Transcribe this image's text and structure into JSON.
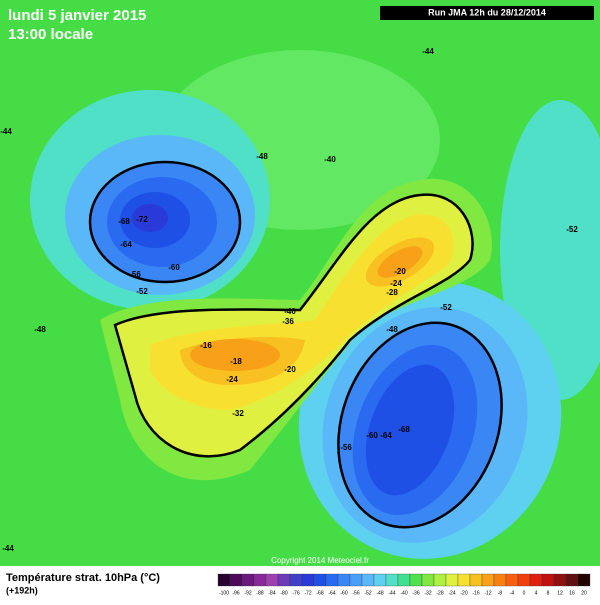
{
  "header": {
    "date": "lundi 5 janvier 2015",
    "time": "13:00 locale",
    "run": "Run JMA 12h du 28/12/2014"
  },
  "copyright": "Copyright 2014 Meteociel.fr",
  "footer": {
    "title": "Température strat. 10hPa (°C)",
    "lead": "(+192h)"
  },
  "contour_labels": [
    -44,
    -44,
    -48,
    -40,
    -68,
    -72,
    -64,
    -56,
    -60,
    -52,
    -52,
    -48,
    -40,
    -36,
    -20,
    -24,
    -28,
    -16,
    -18,
    -20,
    -24,
    -32,
    -52,
    -48,
    -68,
    -60,
    -64,
    -56,
    -44
  ],
  "legend": [
    {
      "value": -100,
      "color": "#2a0030"
    },
    {
      "value": -96,
      "color": "#4b0a5a"
    },
    {
      "value": -92,
      "color": "#6a1a7a"
    },
    {
      "value": -88,
      "color": "#8a2a9a"
    },
    {
      "value": -84,
      "color": "#a040b0"
    },
    {
      "value": -80,
      "color": "#6a3ab8"
    },
    {
      "value": -76,
      "color": "#4040c8"
    },
    {
      "value": -72,
      "color": "#2a3ad8"
    },
    {
      "value": -68,
      "color": "#1e50e6"
    },
    {
      "value": -64,
      "color": "#2a6af0"
    },
    {
      "value": -60,
      "color": "#3a86f5"
    },
    {
      "value": -56,
      "color": "#4aa0f8"
    },
    {
      "value": -52,
      "color": "#5ab8f8"
    },
    {
      "value": -48,
      "color": "#5ed0f0"
    },
    {
      "value": -44,
      "color": "#50e0c8"
    },
    {
      "value": -40,
      "color": "#40e090"
    },
    {
      "value": -36,
      "color": "#50e050"
    },
    {
      "value": -32,
      "color": "#80e840"
    },
    {
      "value": -28,
      "color": "#b0f040"
    },
    {
      "value": -24,
      "color": "#e0f040"
    },
    {
      "value": -20,
      "color": "#f8e030"
    },
    {
      "value": -16,
      "color": "#f8c020"
    },
    {
      "value": -12,
      "color": "#f8a018"
    },
    {
      "value": -8,
      "color": "#f88010"
    },
    {
      "value": -4,
      "color": "#f86010"
    },
    {
      "value": 0,
      "color": "#f04010"
    },
    {
      "value": 4,
      "color": "#e02010"
    },
    {
      "value": 8,
      "color": "#c01010"
    },
    {
      "value": 12,
      "color": "#901010"
    },
    {
      "value": 16,
      "color": "#601010"
    },
    {
      "value": 20,
      "color": "#200000"
    }
  ]
}
